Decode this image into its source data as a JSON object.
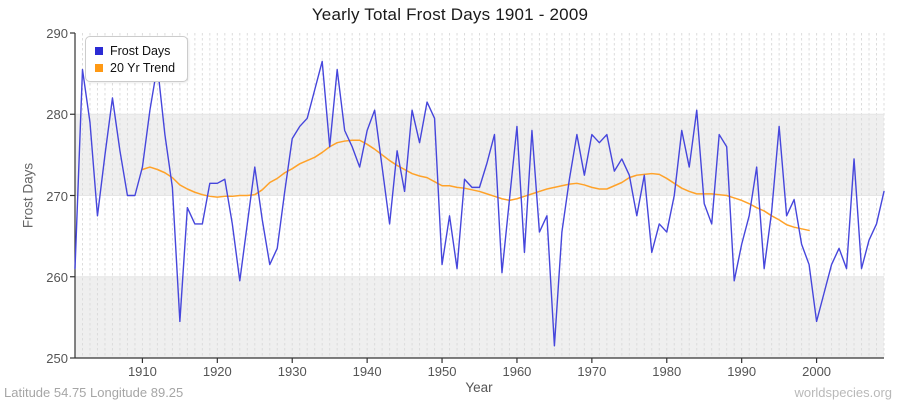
{
  "title": "Yearly Total Frost Days 1901 - 2009",
  "y_axis": {
    "label": "Frost Days",
    "ticks": [
      250,
      260,
      270,
      280,
      290
    ]
  },
  "x_axis": {
    "label": "Year",
    "ticks": [
      1910,
      1920,
      1930,
      1940,
      1950,
      1960,
      1970,
      1980,
      1990,
      2000
    ]
  },
  "legend": {
    "items": [
      {
        "label": "Frost Days",
        "color": "#2b2bd4"
      },
      {
        "label": "20 Yr Trend",
        "color": "#ff9914"
      }
    ]
  },
  "footer": {
    "left": "Latitude 54.75 Longitude 89.25",
    "right": "worldspecies.org"
  },
  "colors": {
    "frost_line": "#4646dc",
    "trend_line": "#ffa229",
    "band_fill": "#efefef",
    "gridline": "#dcdcdc",
    "axis": "#333333"
  },
  "chart_data": {
    "type": "line",
    "title": "Yearly Total Frost Days 1901 - 2009",
    "xlabel": "Year",
    "ylabel": "Frost Days",
    "xlim": [
      1901,
      2009
    ],
    "ylim": [
      250,
      290
    ],
    "x_ticks": [
      1910,
      1920,
      1930,
      1940,
      1950,
      1960,
      1970,
      1980,
      1990,
      2000
    ],
    "y_ticks": [
      250,
      260,
      270,
      280,
      290
    ],
    "grid": "vertical dashed yearly; alternating horizontal bands 250-260 and 270-280 shaded",
    "legend_position": "top-left",
    "series": [
      {
        "name": "Frost Days",
        "x_start": 1901,
        "x_step": 1,
        "values": [
          261,
          285.5,
          279,
          267.5,
          275,
          282,
          275.5,
          270,
          270,
          273.5,
          280.5,
          286,
          277.5,
          271,
          254.5,
          268.5,
          266.5,
          266.5,
          271.5,
          271.5,
          272,
          266.5,
          259.5,
          266.5,
          273.5,
          267,
          261.5,
          263.5,
          270.5,
          277,
          278.5,
          279.5,
          283,
          286.5,
          276,
          285.5,
          278,
          276,
          273.5,
          278,
          280.5,
          273.5,
          266.5,
          275.5,
          270.5,
          280.5,
          276.5,
          281.5,
          279.5,
          261.5,
          267.5,
          261,
          272,
          271,
          271,
          274,
          277.5,
          260.5,
          269.5,
          278.5,
          263,
          278,
          265.5,
          267.5,
          251.5,
          265.5,
          272,
          277.5,
          272.5,
          277.5,
          276.5,
          277.5,
          273,
          274.5,
          272.5,
          267.5,
          272.5,
          263,
          266.5,
          265.5,
          270,
          278,
          273.5,
          280.5,
          269,
          266.5,
          277.5,
          276,
          259.5,
          264,
          267.5,
          273.5,
          261,
          268,
          278.5,
          267.5,
          269.5,
          264,
          261.5,
          254.5,
          258,
          261.5,
          263.5,
          261,
          274.5,
          261,
          264.5,
          266.5,
          270.5
        ]
      },
      {
        "name": "20 Yr Trend",
        "x_start": 1910,
        "x_step": 1,
        "values": [
          273.2,
          273.5,
          273.2,
          272.8,
          272.2,
          271.3,
          270.8,
          270.4,
          270.1,
          269.9,
          269.8,
          269.9,
          269.9,
          270,
          270,
          270.1,
          270.7,
          271.6,
          272.1,
          272.8,
          273.3,
          273.9,
          274.3,
          274.7,
          275.3,
          276,
          276.5,
          276.7,
          276.8,
          276.8,
          276.3,
          275.7,
          275,
          274.3,
          273.7,
          273.2,
          272.7,
          272.4,
          272.2,
          271.7,
          271.2,
          271.2,
          271,
          270.9,
          270.7,
          270.5,
          270.2,
          269.9,
          269.6,
          269.4,
          269.6,
          269.9,
          270.2,
          270.5,
          270.8,
          271,
          271.2,
          271.4,
          271.5,
          271.3,
          271,
          270.8,
          270.8,
          271.2,
          271.6,
          272.2,
          272.5,
          272.6,
          272.7,
          272.6,
          272.1,
          271.5,
          270.9,
          270.5,
          270.2,
          270.2,
          270.2,
          270.1,
          270,
          269.7,
          269.4,
          269,
          268.5,
          268.1,
          267.5,
          267,
          266.4,
          266.1,
          265.9,
          265.7
        ]
      }
    ]
  }
}
